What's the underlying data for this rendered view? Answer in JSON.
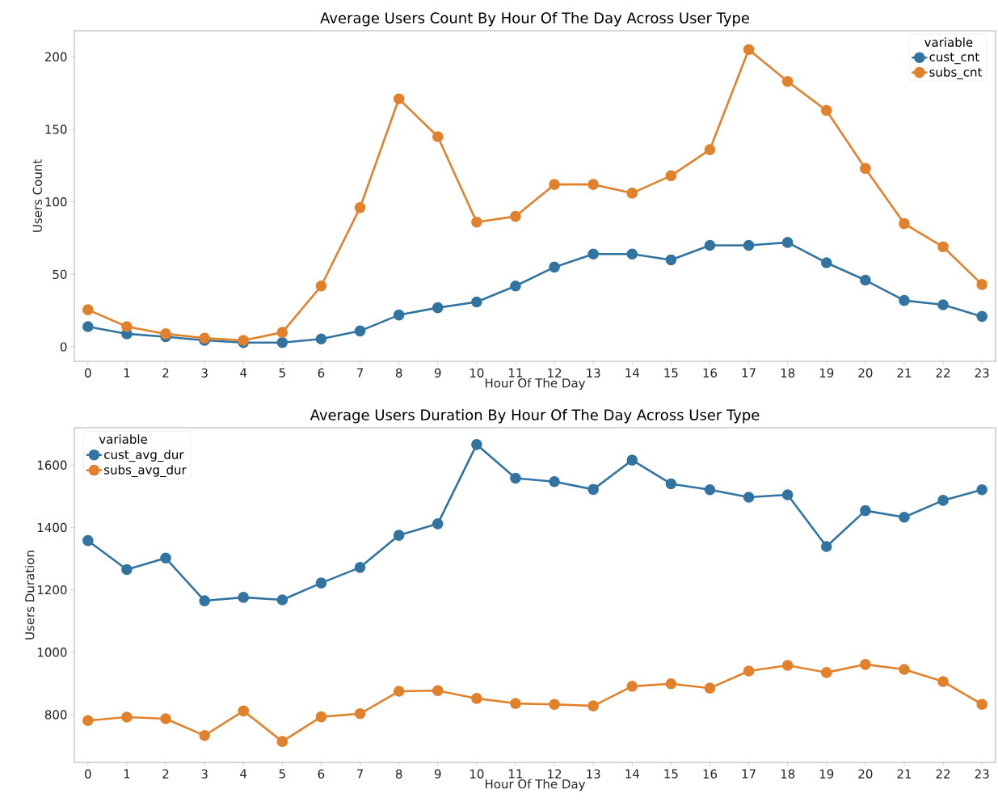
{
  "chart_data": [
    {
      "type": "line",
      "title": "Average Users Count By Hour Of The Day Across User Type",
      "xlabel": "Hour Of The Day",
      "ylabel": "Users Count",
      "legend_title": "variable",
      "categories": [
        "0",
        "1",
        "2",
        "3",
        "4",
        "5",
        "6",
        "7",
        "8",
        "9",
        "10",
        "11",
        "12",
        "13",
        "14",
        "15",
        "16",
        "17",
        "18",
        "19",
        "20",
        "21",
        "22",
        "23"
      ],
      "series": [
        {
          "name": "cust_cnt",
          "color": "#3274a1",
          "values": [
            14,
            9,
            7,
            4.5,
            3,
            3,
            5.5,
            11,
            22,
            27,
            31,
            42,
            55,
            64,
            64,
            60,
            70,
            70,
            72,
            58,
            46,
            32,
            29,
            21
          ]
        },
        {
          "name": "subs_cnt",
          "color": "#e1812c",
          "values": [
            25.6,
            14,
            9,
            6,
            4.5,
            10,
            42,
            96,
            171,
            145,
            86,
            90,
            112,
            112,
            106,
            118,
            136,
            205,
            183,
            163,
            123,
            85,
            69,
            43
          ]
        }
      ],
      "ylim": [
        -10,
        218
      ],
      "yticks": [
        0,
        50,
        100,
        150,
        200
      ],
      "grid": false,
      "legend": "top right",
      "marker": "circle",
      "line_style": "solid"
    },
    {
      "type": "line",
      "title": "Average Users Duration By Hour Of The Day Across User Type",
      "xlabel": "Hour Of The Day",
      "ylabel": "Users Duration",
      "legend_title": "variable",
      "categories": [
        "0",
        "1",
        "2",
        "3",
        "4",
        "5",
        "6",
        "7",
        "8",
        "9",
        "10",
        "11",
        "12",
        "13",
        "14",
        "15",
        "16",
        "17",
        "18",
        "19",
        "20",
        "21",
        "22",
        "23"
      ],
      "series": [
        {
          "name": "cust_avg_dur",
          "color": "#3274a1",
          "values": [
            1358,
            1265,
            1302,
            1165,
            1176,
            1168,
            1222,
            1272,
            1375,
            1412,
            1666,
            1558,
            1547,
            1522,
            1616,
            1540,
            1521,
            1497,
            1505,
            1339,
            1454,
            1433,
            1487,
            1521
          ]
        },
        {
          "name": "subs_avg_dur",
          "color": "#e1812c",
          "values": [
            781,
            792,
            787,
            733,
            812,
            714,
            793,
            803,
            875,
            877,
            852,
            836,
            833,
            828,
            891,
            899,
            885,
            940,
            958,
            935,
            961,
            945,
            906,
            833
          ]
        }
      ],
      "ylim": [
        647,
        1720
      ],
      "yticks": [
        800,
        1000,
        1200,
        1400,
        1600
      ],
      "grid": false,
      "legend": "top left",
      "marker": "circle",
      "line_style": "solid"
    }
  ]
}
